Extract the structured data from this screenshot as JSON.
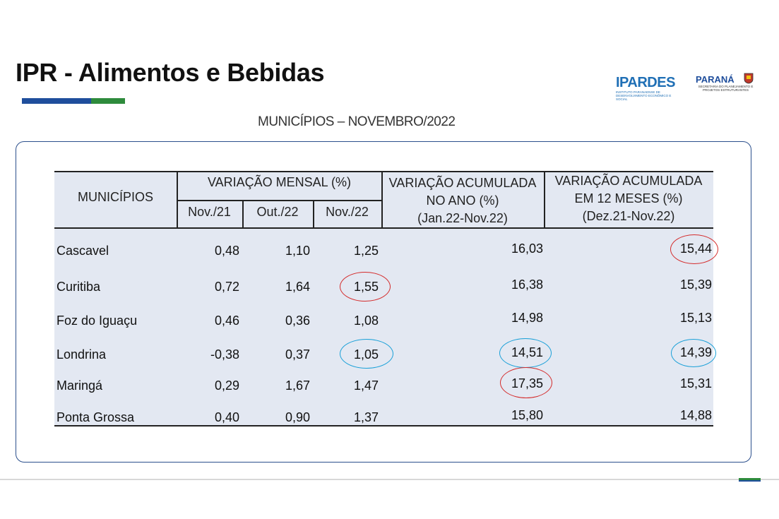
{
  "title": "IPR - Alimentos e Bebidas",
  "logos": {
    "ipardes": "IPARDES",
    "ipardes_sub": "Instituto Paranaense de Desenvolvimento Econômico e Social",
    "parana": "PARANÁ",
    "parana_sub": "Secretaria do Planejamento e Projetos Estruturantes"
  },
  "subtitle": "MUNICÍPIOS – NOVEMBRO/2022",
  "table": {
    "headers": {
      "municipios": "MUNICÍPIOS",
      "variacao_mensal": "VARIAÇÃO MENSAL (%)",
      "nov21": "Nov./21",
      "out22": "Out./22",
      "nov22": "Nov./22",
      "acum_ano_1": "VARIAÇÃO ACUMULADA",
      "acum_ano_2": "NO ANO (%)",
      "acum_ano_3": "(Jan.22-Nov.22)",
      "acum_12_1": "VARIAÇÃO ACUMULADA",
      "acum_12_2": "EM 12 MESES (%)",
      "acum_12_3": "(Dez.21-Nov.22)"
    },
    "rows": [
      {
        "municipio": "Cascavel",
        "nov21": "0,48",
        "out22": "1,10",
        "nov22": "1,25",
        "ano": "16,03",
        "doze": "15,44"
      },
      {
        "municipio": "Curitiba",
        "nov21": "0,72",
        "out22": "1,64",
        "nov22": "1,55",
        "ano": "16,38",
        "doze": "15,39"
      },
      {
        "municipio": "Foz do Iguaçu",
        "nov21": "0,46",
        "out22": "0,36",
        "nov22": "1,08",
        "ano": "14,98",
        "doze": "15,13"
      },
      {
        "municipio": "Londrina",
        "nov21": "-0,38",
        "out22": "0,37",
        "nov22": "1,05",
        "ano": "14,51",
        "doze": "14,39"
      },
      {
        "municipio": "Maringá",
        "nov21": "0,29",
        "out22": "1,67",
        "nov22": "1,47",
        "ano": "17,35",
        "doze": "15,31"
      },
      {
        "municipio": "Ponta Grossa",
        "nov21": "0,40",
        "out22": "0,90",
        "nov22": "1,37",
        "ano": "15,80",
        "doze": "14,88"
      }
    ]
  },
  "highlights": {
    "max_color": "#d42b2b",
    "min_color": "#1aa0d8"
  }
}
